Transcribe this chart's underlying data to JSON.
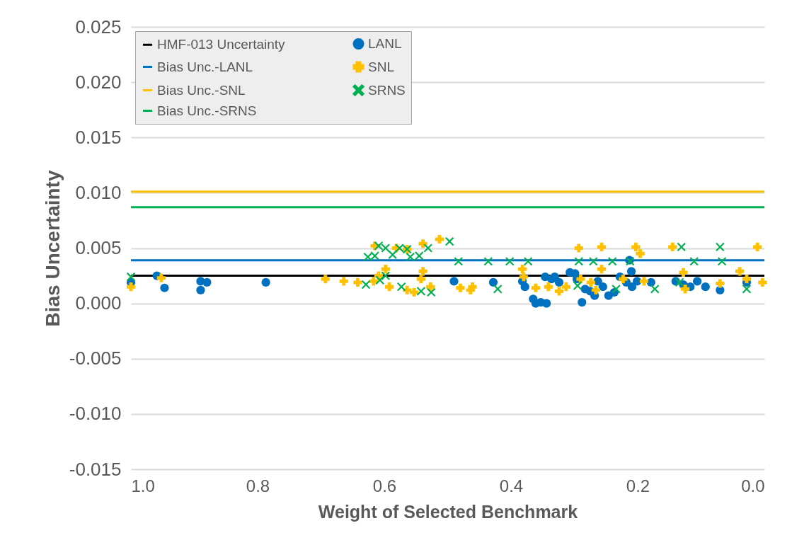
{
  "chart_data": {
    "type": "scatter",
    "xlabel": "Weight of Selected Benchmark",
    "ylabel": "Bias Uncertainty",
    "xlim": [
      1.0,
      0.0
    ],
    "xticks": [
      {
        "value": 1,
        "label": "1.0"
      },
      0.8,
      0.6,
      0.4,
      0.2,
      {
        "value": 0,
        "label": "0.0"
      }
    ],
    "ylim": [
      -0.015,
      0.025
    ],
    "yticks": [
      {
        "value": -0.015,
        "label": "-0.015"
      },
      {
        "value": -0.01,
        "label": "-0.010"
      },
      {
        "value": -0.005,
        "label": "-0.005"
      },
      {
        "value": 0,
        "label": "0.000"
      },
      {
        "value": 0.005,
        "label": "0.005"
      },
      {
        "value": 0.01,
        "label": "0.010"
      },
      {
        "value": 0.015,
        "label": "0.015"
      },
      {
        "value": 0.02,
        "label": "0.020"
      },
      {
        "value": 0.025,
        "label": "0.025"
      }
    ],
    "grid": "y",
    "legend": "top left",
    "series": [
      {
        "name": "HMF-013 Uncertainty",
        "type": "line",
        "marker": "none",
        "color": "#000000",
        "x": [
          1.0,
          0.0
        ],
        "values": [
          0.0025,
          0.0025
        ]
      },
      {
        "name": "Bias Unc.-LANL",
        "type": "line",
        "marker": "none",
        "color": "#0070c0",
        "x": [
          1.0,
          0.0
        ],
        "values": [
          0.0039,
          0.0039
        ]
      },
      {
        "name": "Bias Unc.-SNL",
        "type": "line",
        "marker": "none",
        "color": "#ffc000",
        "x": [
          1.0,
          0.0
        ],
        "values": [
          0.0101,
          0.0101
        ]
      },
      {
        "name": "Bias Unc.-SRNS",
        "type": "line",
        "marker": "none",
        "color": "#00b050",
        "x": [
          1.0,
          0.0
        ],
        "values": [
          0.0087,
          0.0087
        ]
      },
      {
        "name": "LANL",
        "type": "scatter",
        "marker": "circle",
        "color": "#0070c0",
        "x": [
          1.0,
          0.959,
          0.947,
          0.89,
          0.89,
          0.88,
          0.787,
          0.49,
          0.428,
          0.382,
          0.378,
          0.365,
          0.361,
          0.353,
          0.344,
          0.346,
          0.336,
          0.331,
          0.324,
          0.307,
          0.299,
          0.296,
          0.288,
          0.283,
          0.275,
          0.268,
          0.263,
          0.255,
          0.246,
          0.237,
          0.228,
          0.218,
          0.213,
          0.21,
          0.209,
          0.201,
          0.179,
          0.14,
          0.128,
          0.117,
          0.106,
          0.093,
          0.07,
          0.028
        ],
        "values": [
          0.0019,
          0.0025,
          0.0014,
          0.002,
          0.0012,
          0.0019,
          0.0019,
          0.002,
          0.0019,
          0.002,
          0.0015,
          0.0004,
          0.0,
          0.0001,
          0.0,
          0.0024,
          0.0022,
          0.0024,
          0.0019,
          0.0028,
          0.0027,
          0.0022,
          0.0001,
          0.0013,
          0.0011,
          0.0007,
          0.002,
          0.0015,
          0.0007,
          0.001,
          0.0024,
          0.0019,
          0.0039,
          0.0029,
          0.0015,
          0.002,
          0.0019,
          0.002,
          0.0017,
          0.0015,
          0.002,
          0.0015,
          0.0012,
          0.0019
        ]
      },
      {
        "name": "SNL",
        "type": "scatter",
        "marker": "cross",
        "color": "#ffc000",
        "x": [
          1.0,
          0.952,
          0.693,
          0.664,
          0.642,
          0.617,
          0.609,
          0.598,
          0.592,
          0.615,
          0.581,
          0.564,
          0.539,
          0.513,
          0.553,
          0.564,
          0.542,
          0.539,
          0.527,
          0.48,
          0.464,
          0.461,
          0.382,
          0.38,
          0.361,
          0.341,
          0.324,
          0.313,
          0.293,
          0.29,
          0.274,
          0.266,
          0.257,
          0.257,
          0.223,
          0.203,
          0.196,
          0.19,
          0.145,
          0.128,
          0.125,
          0.07,
          0.039,
          0.028,
          0.011,
          0.003
        ],
        "values": [
          0.0015,
          0.0023,
          0.0022,
          0.002,
          0.0019,
          0.002,
          0.0025,
          0.0031,
          0.0015,
          0.0052,
          0.005,
          0.0049,
          0.0054,
          0.0058,
          0.001,
          0.0012,
          0.0022,
          0.0029,
          0.0015,
          0.0014,
          0.0012,
          0.0015,
          0.0031,
          0.0024,
          0.0014,
          0.0015,
          0.0011,
          0.0015,
          0.005,
          0.0022,
          0.0019,
          0.0012,
          0.0051,
          0.0031,
          0.0022,
          0.0051,
          0.0045,
          0.002,
          0.0051,
          0.0028,
          0.0013,
          0.0018,
          0.0029,
          0.0022,
          0.0051,
          0.0019
        ]
      },
      {
        "name": "SRNS",
        "type": "scatter",
        "marker": "x",
        "color": "#00b050",
        "x": [
          1.0,
          0.629,
          0.607,
          0.598,
          0.573,
          0.542,
          0.526,
          0.626,
          0.615,
          0.609,
          0.598,
          0.587,
          0.576,
          0.564,
          0.559,
          0.545,
          0.531,
          0.497,
          0.483,
          0.436,
          0.402,
          0.373,
          0.421,
          0.293,
          0.27,
          0.24,
          0.212,
          0.295,
          0.234,
          0.173,
          0.131,
          0.111,
          0.07,
          0.067,
          0.134,
          0.028
        ],
        "values": [
          0.0024,
          0.0017,
          0.0021,
          0.0025,
          0.0015,
          0.0011,
          0.001,
          0.0042,
          0.0043,
          0.0052,
          0.005,
          0.0044,
          0.005,
          0.0049,
          0.0042,
          0.0043,
          0.005,
          0.0056,
          0.0038,
          0.0038,
          0.0038,
          0.0038,
          0.0013,
          0.0038,
          0.0038,
          0.0038,
          0.0038,
          0.0016,
          0.0013,
          0.0013,
          0.0051,
          0.0038,
          0.0051,
          0.0038,
          0.0019,
          0.0013
        ]
      }
    ]
  }
}
